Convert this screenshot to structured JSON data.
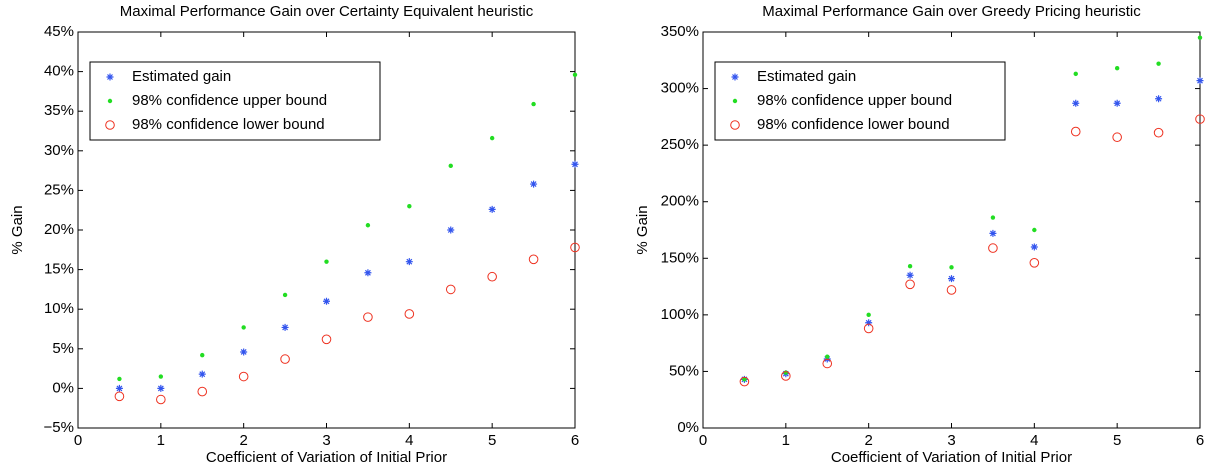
{
  "chart_data": [
    {
      "type": "scatter",
      "title": "Maximal Performance Gain over Certainty Equivalent heuristic",
      "xlabel": "Coefficient of Variation of Initial Prior",
      "ylabel": "% Gain",
      "x": [
        0.5,
        1,
        1.5,
        2,
        2.5,
        3,
        3.5,
        4,
        4.5,
        5,
        5.5,
        6
      ],
      "series": [
        {
          "name": "Estimated gain",
          "color": "#3355ee",
          "marker": "*",
          "values": [
            0,
            0,
            1.8,
            4.6,
            7.7,
            11,
            14.6,
            16,
            20,
            22.6,
            25.8,
            28.3
          ]
        },
        {
          "name": "98% confidence upper bound",
          "color": "#22dd22",
          "marker": ".",
          "values": [
            1.2,
            1.5,
            4.2,
            7.7,
            11.8,
            16,
            20.6,
            23,
            28.1,
            31.6,
            35.9,
            39.6
          ]
        },
        {
          "name": "98% confidence lower bound",
          "color": "#ee3322",
          "marker": "o",
          "values": [
            -1,
            -1.4,
            -0.4,
            1.5,
            3.7,
            6.2,
            9,
            9.4,
            12.5,
            14.1,
            16.3,
            17.8
          ]
        }
      ],
      "xlim": [
        0,
        6
      ],
      "xticks": [
        0,
        1,
        2,
        3,
        4,
        5,
        6
      ],
      "ylim": [
        -5,
        45
      ],
      "yticks": [
        {
          "value": -5,
          "label": "−5%"
        },
        {
          "value": 0,
          "label": "0%"
        },
        {
          "value": 5,
          "label": "5%"
        },
        {
          "value": 10,
          "label": "10%"
        },
        {
          "value": 15,
          "label": "15%"
        },
        {
          "value": 20,
          "label": "20%"
        },
        {
          "value": 25,
          "label": "25%"
        },
        {
          "value": 30,
          "label": "30%"
        },
        {
          "value": 35,
          "label": "35%"
        },
        {
          "value": 40,
          "label": "40%"
        },
        {
          "value": 45,
          "label": "45%"
        }
      ],
      "legend": "upper left",
      "grid": false
    },
    {
      "type": "scatter",
      "title": "Maximal Performance Gain over Greedy Pricing heuristic",
      "xlabel": "Coefficient of Variation of Initial Prior",
      "ylabel": "% Gain",
      "x": [
        0.5,
        1,
        1.5,
        2,
        2.5,
        3,
        3.5,
        4,
        4.5,
        5,
        5.5,
        6
      ],
      "series": [
        {
          "name": "Estimated gain",
          "color": "#3355ee",
          "marker": "*",
          "values": [
            43,
            48,
            61,
            93,
            135,
            132,
            172,
            160,
            287,
            287,
            291,
            307
          ]
        },
        {
          "name": "98% confidence upper bound",
          "color": "#22dd22",
          "marker": ".",
          "values": [
            43,
            49,
            63,
            100,
            143,
            142,
            186,
            175,
            313,
            318,
            322,
            345
          ]
        },
        {
          "name": "98% confidence lower bound",
          "color": "#ee3322",
          "marker": "o",
          "values": [
            41,
            46,
            57,
            88,
            127,
            122,
            159,
            146,
            262,
            257,
            261,
            273
          ]
        }
      ],
      "xlim": [
        0,
        6
      ],
      "xticks": [
        0,
        1,
        2,
        3,
        4,
        5,
        6
      ],
      "ylim": [
        0,
        350
      ],
      "yticks": [
        {
          "value": 0,
          "label": "0%"
        },
        {
          "value": 50,
          "label": "50%"
        },
        {
          "value": 100,
          "label": "100%"
        },
        {
          "value": 150,
          "label": "150%"
        },
        {
          "value": 200,
          "label": "200%"
        },
        {
          "value": 250,
          "label": "250%"
        },
        {
          "value": 300,
          "label": "300%"
        },
        {
          "value": 350,
          "label": "350%"
        }
      ],
      "legend": "upper left",
      "grid": false
    }
  ]
}
